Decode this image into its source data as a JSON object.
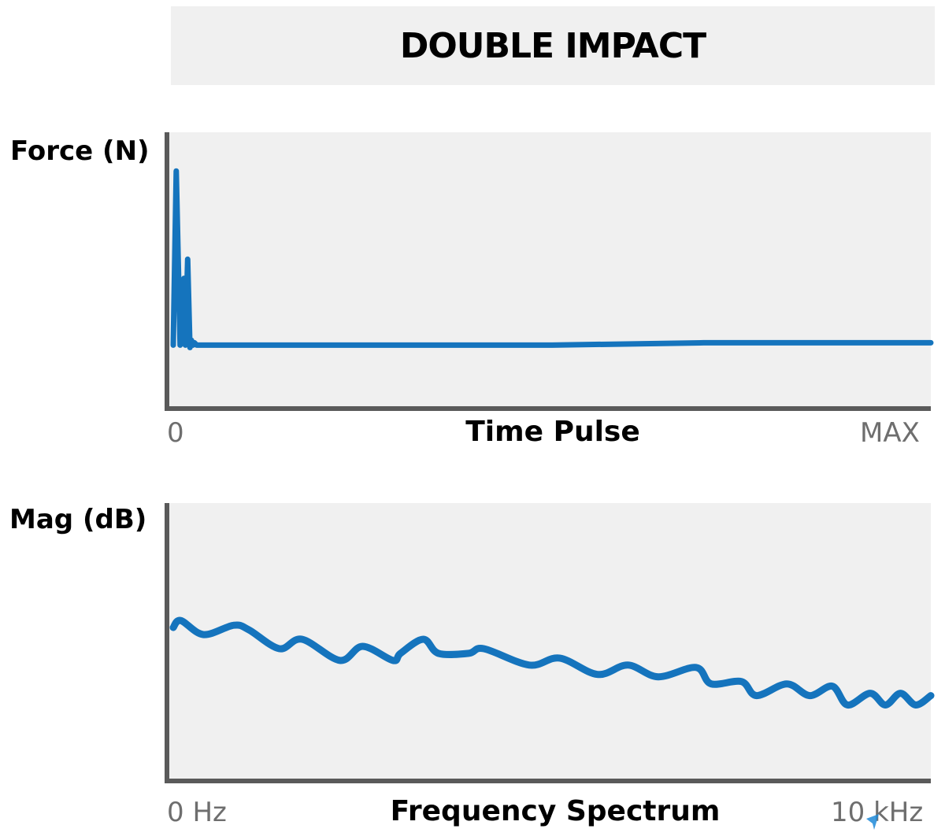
{
  "title": "DOUBLE IMPACT",
  "chart_data": [
    {
      "type": "line",
      "ylabel": "Force (N)",
      "xlabel": "Time Pulse",
      "x_ticks": [
        "0",
        "MAX"
      ],
      "xlim": [
        0,
        1
      ],
      "ylim": [
        0,
        1
      ],
      "grid": false,
      "color": "#1574bd",
      "series": [
        {
          "x": [
            0.0,
            0.004,
            0.009,
            0.012,
            0.014,
            0.016,
            0.019,
            0.022,
            0.024,
            0.026,
            0.028,
            0.031,
            0.034,
            0.038,
            0.042,
            0.046,
            0.05,
            0.1,
            0.3,
            0.5,
            0.7,
            0.9,
            1.0
          ],
          "y": [
            0.2,
            0.93,
            0.2,
            0.22,
            0.48,
            0.2,
            0.56,
            0.19,
            0.22,
            0.2,
            0.21,
            0.2,
            0.2,
            0.2,
            0.2,
            0.2,
            0.2,
            0.2,
            0.2,
            0.2,
            0.21,
            0.21,
            0.21
          ]
        }
      ]
    },
    {
      "type": "line",
      "ylabel": "Mag (dB)",
      "xlabel": "Frequency Spectrum",
      "x_ticks": [
        "0 Hz",
        "10 kHz"
      ],
      "xlim": [
        0,
        10
      ],
      "ylim": [
        0,
        1
      ],
      "grid": false,
      "color": "#1574bd",
      "series": [
        {
          "x": [
            0.0,
            0.1,
            0.4,
            0.8,
            1.0,
            1.4,
            1.7,
            2.2,
            2.5,
            2.9,
            3.0,
            3.3,
            3.5,
            3.9,
            4.1,
            4.7,
            5.1,
            5.6,
            6.0,
            6.4,
            6.9,
            7.1,
            7.5,
            7.7,
            8.1,
            8.4,
            8.7,
            8.9,
            9.2,
            9.4,
            9.6,
            9.8,
            10.0
          ],
          "y": [
            0.57,
            0.6,
            0.54,
            0.58,
            0.56,
            0.48,
            0.52,
            0.43,
            0.49,
            0.43,
            0.46,
            0.52,
            0.46,
            0.46,
            0.48,
            0.41,
            0.44,
            0.37,
            0.41,
            0.36,
            0.4,
            0.33,
            0.34,
            0.28,
            0.33,
            0.28,
            0.32,
            0.24,
            0.29,
            0.24,
            0.29,
            0.24,
            0.28
          ]
        }
      ]
    }
  ]
}
